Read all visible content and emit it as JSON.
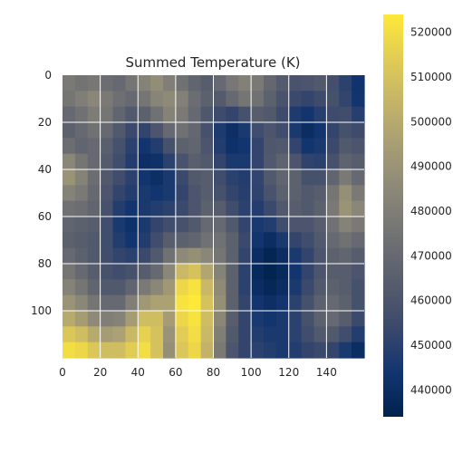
{
  "chart_data": {
    "type": "heatmap",
    "title": "Summed Temperature (K)",
    "xlabel": "",
    "ylabel": "",
    "colormap": "cividis",
    "grid": true,
    "x_range": [
      0,
      160
    ],
    "y_range": [
      0,
      120
    ],
    "x_ticks": [
      0,
      20,
      40,
      60,
      80,
      100,
      120,
      140
    ],
    "y_ticks": [
      0,
      20,
      40,
      60,
      80,
      100
    ],
    "x_tick_labels": [
      "0",
      "20",
      "40",
      "60",
      "80",
      "100",
      "120",
      "140"
    ],
    "y_tick_labels": [
      "0",
      "20",
      "40",
      "60",
      "80",
      "100"
    ],
    "colorbar": {
      "range": [
        434000,
        524000
      ],
      "ticks": [
        440000,
        450000,
        460000,
        470000,
        480000,
        490000,
        500000,
        510000,
        520000
      ],
      "tick_labels": [
        "440000",
        "450000",
        "460000",
        "470000",
        "480000",
        "490000",
        "500000",
        "510000",
        "520000"
      ],
      "colors": [
        "#00224e",
        "#123570",
        "#3b496c",
        "#575d6d",
        "#707173",
        "#8a8678",
        "#a59c74",
        "#c3b369",
        "#e1cc55",
        "#fee838"
      ]
    },
    "grid_values": [
      [
        478,
        475,
        477,
        472,
        470,
        476,
        482,
        487,
        480,
        474,
        468,
        464,
        470,
        477,
        481,
        478,
        469,
        463,
        459,
        460,
        462,
        457,
        450,
        443
      ],
      [
        476,
        480,
        484,
        478,
        473,
        470,
        476,
        483,
        486,
        481,
        472,
        466,
        463,
        470,
        476,
        474,
        466,
        459,
        454,
        452,
        455,
        458,
        452,
        444
      ],
      [
        470,
        474,
        479,
        476,
        468,
        462,
        466,
        474,
        482,
        478,
        470,
        461,
        455,
        452,
        458,
        464,
        462,
        455,
        447,
        444,
        449,
        455,
        456,
        449
      ],
      [
        466,
        470,
        474,
        470,
        462,
        454,
        452,
        460,
        470,
        474,
        469,
        458,
        447,
        441,
        446,
        456,
        460,
        456,
        446,
        440,
        444,
        452,
        458,
        455
      ],
      [
        472,
        468,
        470,
        465,
        458,
        450,
        444,
        448,
        458,
        466,
        468,
        460,
        448,
        442,
        444,
        452,
        461,
        462,
        452,
        444,
        446,
        454,
        462,
        460
      ],
      [
        484,
        476,
        470,
        463,
        456,
        448,
        441,
        442,
        450,
        459,
        465,
        462,
        452,
        446,
        446,
        452,
        462,
        467,
        460,
        451,
        450,
        458,
        467,
        464
      ],
      [
        490,
        482,
        472,
        462,
        456,
        450,
        444,
        441,
        446,
        454,
        462,
        464,
        456,
        450,
        448,
        452,
        462,
        468,
        466,
        458,
        458,
        468,
        478,
        470
      ],
      [
        482,
        478,
        470,
        460,
        452,
        448,
        446,
        444,
        446,
        452,
        460,
        464,
        458,
        452,
        449,
        451,
        459,
        466,
        466,
        462,
        464,
        476,
        488,
        478
      ],
      [
        474,
        472,
        468,
        458,
        448,
        444,
        446,
        448,
        450,
        454,
        460,
        466,
        464,
        456,
        450,
        448,
        454,
        462,
        464,
        462,
        466,
        478,
        490,
        484
      ],
      [
        468,
        466,
        464,
        456,
        446,
        442,
        446,
        452,
        456,
        458,
        462,
        470,
        470,
        462,
        452,
        446,
        448,
        456,
        460,
        460,
        464,
        474,
        482,
        478
      ],
      [
        466,
        464,
        462,
        456,
        448,
        444,
        448,
        456,
        464,
        466,
        468,
        474,
        474,
        466,
        454,
        444,
        440,
        446,
        452,
        456,
        462,
        470,
        474,
        470
      ],
      [
        470,
        466,
        462,
        456,
        452,
        450,
        454,
        462,
        474,
        486,
        488,
        484,
        476,
        466,
        452,
        440,
        436,
        440,
        446,
        452,
        460,
        466,
        468,
        464
      ],
      [
        476,
        470,
        464,
        458,
        456,
        458,
        464,
        470,
        484,
        506,
        510,
        498,
        482,
        466,
        450,
        438,
        435,
        438,
        444,
        452,
        460,
        464,
        464,
        460
      ],
      [
        482,
        476,
        468,
        462,
        462,
        468,
        478,
        484,
        492,
        518,
        522,
        506,
        486,
        466,
        450,
        440,
        437,
        440,
        446,
        454,
        462,
        466,
        464,
        458
      ],
      [
        490,
        484,
        476,
        470,
        470,
        480,
        492,
        496,
        496,
        522,
        524,
        510,
        488,
        466,
        452,
        444,
        441,
        444,
        450,
        458,
        466,
        470,
        466,
        458
      ],
      [
        500,
        494,
        486,
        480,
        482,
        494,
        508,
        508,
        494,
        518,
        522,
        508,
        484,
        464,
        452,
        446,
        444,
        446,
        450,
        458,
        466,
        470,
        464,
        454
      ],
      [
        512,
        508,
        500,
        494,
        496,
        506,
        516,
        510,
        490,
        514,
        520,
        506,
        480,
        462,
        452,
        448,
        446,
        446,
        450,
        456,
        462,
        462,
        456,
        448
      ],
      [
        520,
        518,
        512,
        508,
        508,
        514,
        520,
        510,
        488,
        512,
        518,
        504,
        478,
        460,
        452,
        450,
        448,
        446,
        448,
        452,
        454,
        452,
        446,
        440
      ]
    ],
    "color_scale": [
      434000,
      524000
    ],
    "value_scale_note": "grid_values are in thousands of K"
  }
}
